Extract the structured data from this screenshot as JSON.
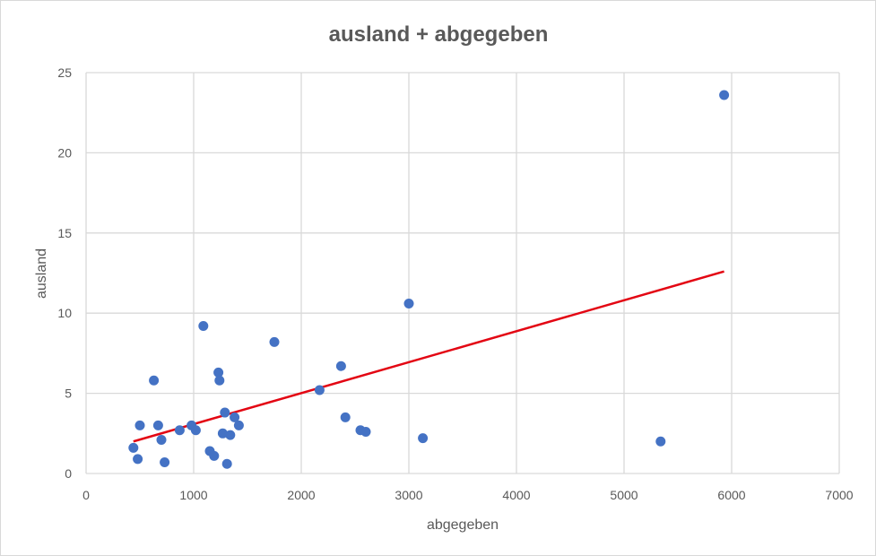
{
  "chart_data": {
    "type": "scatter",
    "title": "ausland + abgegeben",
    "xlabel": "abgegeben",
    "ylabel": "ausland",
    "xlim": [
      0,
      7000
    ],
    "ylim": [
      0,
      25
    ],
    "xticks": [
      0,
      1000,
      2000,
      3000,
      4000,
      5000,
      6000,
      7000
    ],
    "yticks": [
      0,
      5,
      10,
      15,
      20,
      25
    ],
    "grid": true,
    "legend": "none",
    "colors": {
      "points": "#4472C4",
      "trendline": "#E30613",
      "grid": "#d9d9d9",
      "text": "#595959"
    },
    "series": [
      {
        "x": [
          440,
          480,
          500,
          630,
          670,
          700,
          730,
          870,
          980,
          1020,
          1090,
          1150,
          1190,
          1230,
          1240,
          1270,
          1290,
          1310,
          1340,
          1380,
          1420,
          1750,
          2170,
          2370,
          2410,
          2550,
          2600,
          3000,
          3130,
          5340,
          5930
        ],
        "y": [
          1.6,
          0.9,
          3.0,
          5.8,
          3.0,
          2.1,
          0.7,
          2.7,
          3.0,
          2.7,
          9.2,
          1.4,
          1.1,
          6.3,
          5.8,
          2.5,
          3.8,
          0.6,
          2.4,
          3.5,
          3.0,
          8.2,
          5.2,
          6.7,
          3.5,
          2.7,
          2.6,
          10.6,
          2.2,
          2.0,
          23.6
        ]
      }
    ],
    "trendline": {
      "x": [
        440,
        5930
      ],
      "y": [
        2.0,
        12.6
      ]
    }
  }
}
